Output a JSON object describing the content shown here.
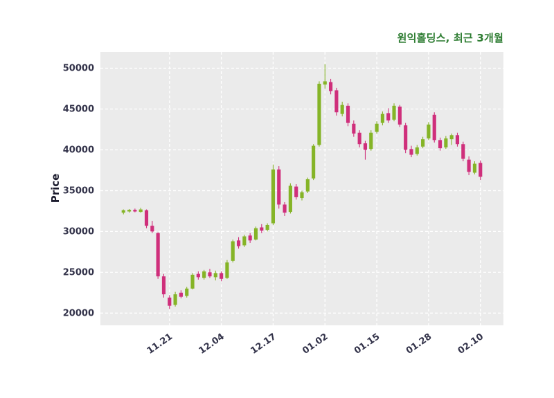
{
  "title": {
    "text": "원익홀딩스, 최근 3개월",
    "color": "#2e7d32"
  },
  "axes": {
    "ylabel": "Price",
    "label_color": "#1c1c2e",
    "tick_color": "#33334a",
    "plot_bg": "#ebebeb",
    "grid_color": "#ffffff"
  },
  "chart_data": {
    "type": "candlestick",
    "title": "원익홀딩스, 최근 3개월",
    "ylabel": "Price",
    "xlabel": "",
    "grid": true,
    "legend": false,
    "ylim": [
      18500,
      52000
    ],
    "yticks": [
      20000,
      25000,
      30000,
      35000,
      40000,
      45000,
      50000
    ],
    "xlim": [
      -4,
      66
    ],
    "xtick_labels": [
      "11.21",
      "12.04",
      "12.17",
      "01.02",
      "01.15",
      "01.28",
      "02.10"
    ],
    "xtick_indices": [
      8,
      17,
      26,
      35,
      44,
      53,
      62
    ],
    "up_color": "#85b427",
    "down_color": "#cf2f7b",
    "ohlc_columns": [
      "open",
      "high",
      "low",
      "close"
    ],
    "ohlc": [
      [
        32300,
        32700,
        32100,
        32600
      ],
      [
        32450,
        32750,
        32300,
        32650
      ],
      [
        32650,
        32800,
        32350,
        32450
      ],
      [
        32400,
        32900,
        32300,
        32700
      ],
      [
        32600,
        32700,
        30400,
        30700
      ],
      [
        30700,
        31300,
        29800,
        30000
      ],
      [
        29800,
        29900,
        24200,
        24500
      ],
      [
        24500,
        24800,
        21900,
        22300
      ],
      [
        21900,
        22200,
        20500,
        20900
      ],
      [
        21000,
        22600,
        20800,
        22300
      ],
      [
        22500,
        22800,
        21800,
        22000
      ],
      [
        22100,
        23200,
        21900,
        23000
      ],
      [
        23000,
        24900,
        22900,
        24700
      ],
      [
        24800,
        25100,
        24100,
        24400
      ],
      [
        24300,
        25300,
        24100,
        25100
      ],
      [
        25000,
        25400,
        24300,
        24500
      ],
      [
        24400,
        25200,
        24000,
        24900
      ],
      [
        24900,
        25100,
        23900,
        24200
      ],
      [
        24300,
        26500,
        24200,
        26200
      ],
      [
        26400,
        29000,
        26200,
        28800
      ],
      [
        28900,
        29300,
        27900,
        28200
      ],
      [
        28300,
        29600,
        28100,
        29400
      ],
      [
        29500,
        29800,
        28600,
        28900
      ],
      [
        29000,
        30600,
        28900,
        30400
      ],
      [
        30500,
        30900,
        29800,
        30100
      ],
      [
        30200,
        31000,
        30000,
        30800
      ],
      [
        31000,
        38200,
        30800,
        37600
      ],
      [
        37600,
        38000,
        32800,
        33300
      ],
      [
        33300,
        33600,
        31900,
        32300
      ],
      [
        32400,
        35900,
        32200,
        35600
      ],
      [
        35500,
        35800,
        33900,
        34200
      ],
      [
        34100,
        35000,
        33800,
        34800
      ],
      [
        34900,
        36600,
        34700,
        36400
      ],
      [
        36500,
        40700,
        36300,
        40500
      ],
      [
        40600,
        48400,
        40400,
        48100
      ],
      [
        48000,
        50500,
        47500,
        48400
      ],
      [
        48300,
        48700,
        46800,
        47200
      ],
      [
        47300,
        47600,
        44200,
        44600
      ],
      [
        44400,
        45900,
        44100,
        45500
      ],
      [
        45400,
        45700,
        42900,
        43300
      ],
      [
        43200,
        43600,
        41600,
        42000
      ],
      [
        42100,
        42400,
        40300,
        40700
      ],
      [
        40800,
        41100,
        38800,
        40000
      ],
      [
        40100,
        42400,
        39900,
        42100
      ],
      [
        42200,
        43500,
        42000,
        43200
      ],
      [
        43300,
        44700,
        43000,
        44400
      ],
      [
        44500,
        45100,
        43300,
        43600
      ],
      [
        43700,
        45700,
        43500,
        45400
      ],
      [
        45300,
        45500,
        42800,
        43100
      ],
      [
        43000,
        43300,
        39600,
        40000
      ],
      [
        40100,
        40500,
        39100,
        39400
      ],
      [
        39500,
        40600,
        39300,
        40300
      ],
      [
        40400,
        41600,
        40200,
        41300
      ],
      [
        41400,
        43400,
        41200,
        43100
      ],
      [
        44300,
        44600,
        40900,
        41200
      ],
      [
        41200,
        41500,
        39900,
        40200
      ],
      [
        40300,
        41700,
        40100,
        41400
      ],
      [
        41300,
        42000,
        40600,
        41800
      ],
      [
        41800,
        42100,
        40400,
        40700
      ],
      [
        40700,
        41000,
        38600,
        38900
      ],
      [
        38800,
        39200,
        36900,
        37300
      ],
      [
        37200,
        38600,
        37000,
        38300
      ],
      [
        38400,
        38700,
        36300,
        36700
      ]
    ]
  }
}
